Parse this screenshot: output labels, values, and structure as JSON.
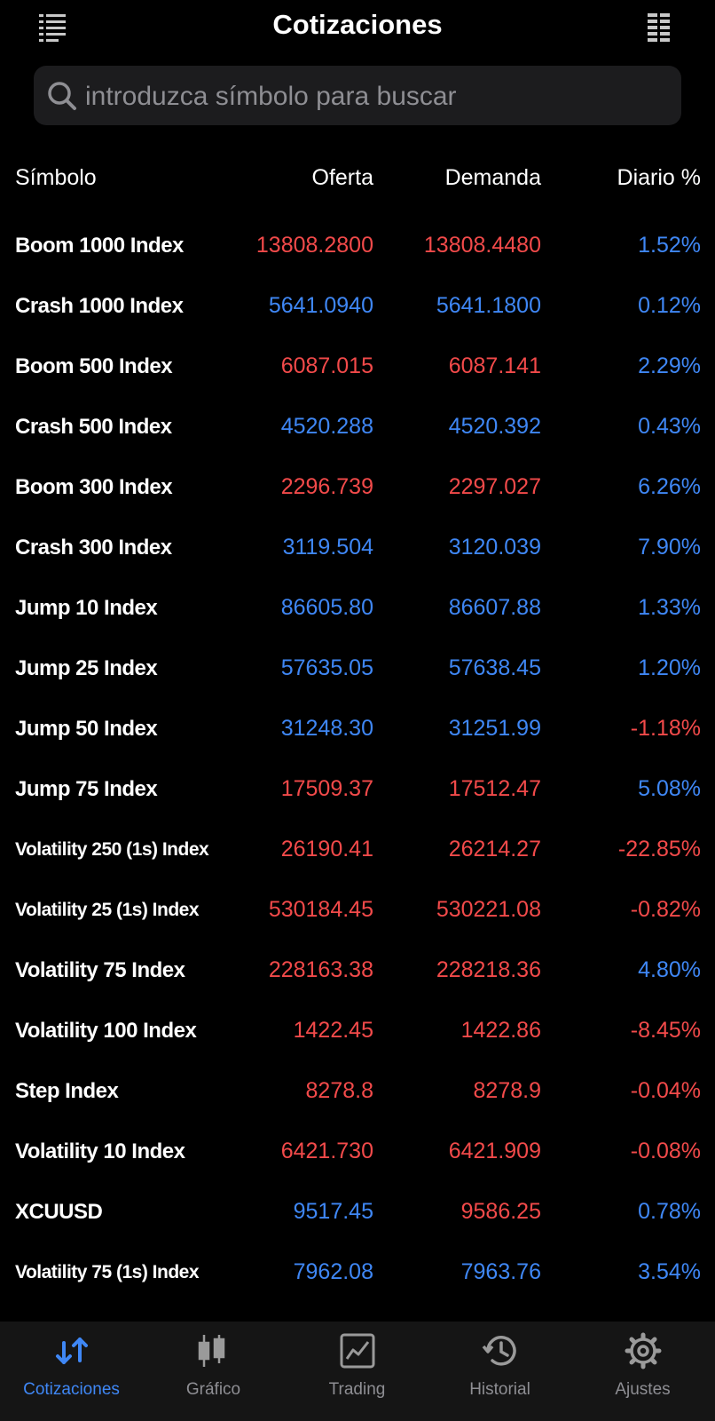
{
  "header": {
    "title": "Cotizaciones"
  },
  "search": {
    "placeholder": "introduzca símbolo para buscar"
  },
  "columns": {
    "symbol": "Símbolo",
    "bid": "Oferta",
    "ask": "Demanda",
    "change": "Diario %"
  },
  "colors": {
    "up": "#3f87f5",
    "down": "#f24a4a",
    "background": "#000000",
    "tabbar": "#151515"
  },
  "rows": [
    {
      "symbol": "Boom 1000 Index",
      "bid": "13808.2800",
      "ask": "13808.4480",
      "change": "1.52%",
      "price_dir": "down",
      "change_dir": "up"
    },
    {
      "symbol": "Crash 1000 Index",
      "bid": "5641.0940",
      "ask": "5641.1800",
      "change": "0.12%",
      "price_dir": "up",
      "change_dir": "up"
    },
    {
      "symbol": "Boom 500 Index",
      "bid": "6087.015",
      "ask": "6087.141",
      "change": "2.29%",
      "price_dir": "down",
      "change_dir": "up"
    },
    {
      "symbol": "Crash 500 Index",
      "bid": "4520.288",
      "ask": "4520.392",
      "change": "0.43%",
      "price_dir": "up",
      "change_dir": "up"
    },
    {
      "symbol": "Boom 300 Index",
      "bid": "2296.739",
      "ask": "2297.027",
      "change": "6.26%",
      "price_dir": "down",
      "change_dir": "up"
    },
    {
      "symbol": "Crash 300 Index",
      "bid": "3119.504",
      "ask": "3120.039",
      "change": "7.90%",
      "price_dir": "up",
      "change_dir": "up"
    },
    {
      "symbol": "Jump 10 Index",
      "bid": "86605.80",
      "ask": "86607.88",
      "change": "1.33%",
      "price_dir": "up",
      "change_dir": "up"
    },
    {
      "symbol": "Jump 25 Index",
      "bid": "57635.05",
      "ask": "57638.45",
      "change": "1.20%",
      "price_dir": "up",
      "change_dir": "up"
    },
    {
      "symbol": "Jump 50 Index",
      "bid": "31248.30",
      "ask": "31251.99",
      "change": "-1.18%",
      "price_dir": "up",
      "change_dir": "down"
    },
    {
      "symbol": "Jump 75 Index",
      "bid": "17509.37",
      "ask": "17512.47",
      "change": "5.08%",
      "price_dir": "down",
      "change_dir": "up"
    },
    {
      "symbol": "Volatility 250 (1s) Index",
      "bid": "26190.41",
      "ask": "26214.27",
      "change": "-22.85%",
      "price_dir": "down",
      "change_dir": "down"
    },
    {
      "symbol": "Volatility 25 (1s) Index",
      "bid": "530184.45",
      "ask": "530221.08",
      "change": "-0.82%",
      "price_dir": "down",
      "change_dir": "down"
    },
    {
      "symbol": "Volatility 75 Index",
      "bid": "228163.38",
      "ask": "228218.36",
      "change": "4.80%",
      "price_dir": "down",
      "change_dir": "up"
    },
    {
      "symbol": "Volatility 100 Index",
      "bid": "1422.45",
      "ask": "1422.86",
      "change": "-8.45%",
      "price_dir": "down",
      "change_dir": "down"
    },
    {
      "symbol": "Step Index",
      "bid": "8278.8",
      "ask": "8278.9",
      "change": "-0.04%",
      "price_dir": "down",
      "change_dir": "down"
    },
    {
      "symbol": "Volatility 10 Index",
      "bid": "6421.730",
      "ask": "6421.909",
      "change": "-0.08%",
      "price_dir": "down",
      "change_dir": "down"
    },
    {
      "symbol": "XCUUSD",
      "bid": "9517.45",
      "ask": "9586.25",
      "change": "0.78%",
      "price_dir": "up",
      "ask_dir": "down",
      "change_dir": "up"
    },
    {
      "symbol": "Volatility 75 (1s) Index",
      "bid": "7962.08",
      "ask": "7963.76",
      "change": "3.54%",
      "price_dir": "up",
      "change_dir": "up"
    }
  ],
  "tabs": [
    {
      "label": "Cotizaciones",
      "icon": "quotes-arrows-icon",
      "active": true
    },
    {
      "label": "Gráfico",
      "icon": "candlestick-chart-icon",
      "active": false
    },
    {
      "label": "Trading",
      "icon": "trading-chart-icon",
      "active": false
    },
    {
      "label": "Historial",
      "icon": "history-clock-icon",
      "active": false
    },
    {
      "label": "Ajustes",
      "icon": "settings-gear-icon",
      "active": false
    }
  ]
}
